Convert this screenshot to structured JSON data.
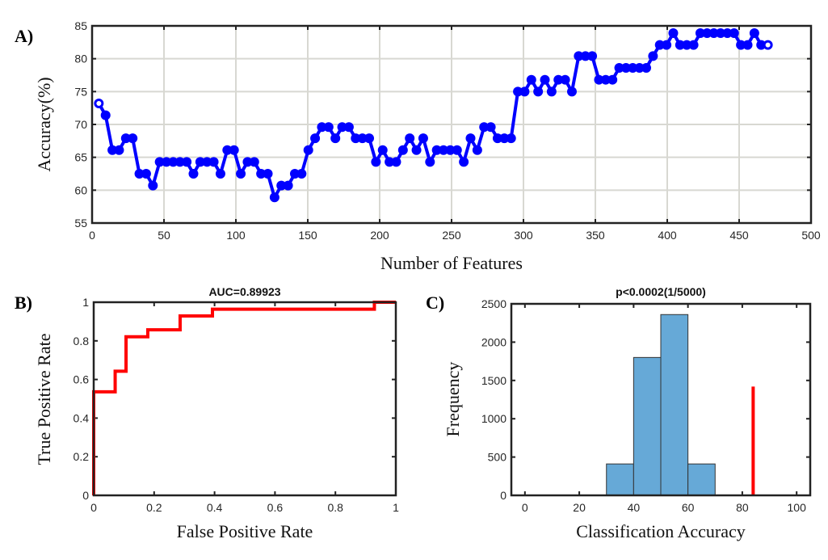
{
  "chart_data": [
    {
      "panel_label": "A)",
      "type": "line",
      "title": "",
      "xlabel": "Number of Features",
      "ylabel": "Accuracy(%)",
      "xlim": [
        0,
        500
      ],
      "ylim": [
        55,
        85
      ],
      "xticks": [
        0,
        50,
        100,
        150,
        200,
        250,
        300,
        350,
        400,
        450,
        500
      ],
      "yticks": [
        55,
        60,
        65,
        70,
        75,
        80,
        85
      ],
      "grid": true,
      "color": "#0000ff",
      "x_step": 4.7,
      "y": [
        73.2,
        71.4,
        66.1,
        66.1,
        67.9,
        67.9,
        62.5,
        62.5,
        60.7,
        64.3,
        64.3,
        64.3,
        64.3,
        64.3,
        62.5,
        64.3,
        64.3,
        64.3,
        62.5,
        66.1,
        66.1,
        62.5,
        64.3,
        64.3,
        62.5,
        62.5,
        58.9,
        60.7,
        60.7,
        62.5,
        62.5,
        66.1,
        67.9,
        69.6,
        69.6,
        67.9,
        69.6,
        69.6,
        67.9,
        67.9,
        67.9,
        64.3,
        66.1,
        64.3,
        64.3,
        66.1,
        67.9,
        66.1,
        67.9,
        64.3,
        66.1,
        66.1,
        66.1,
        66.1,
        64.3,
        67.9,
        66.1,
        69.6,
        69.6,
        67.9,
        67.9,
        67.9,
        75,
        75,
        76.8,
        75,
        76.8,
        75,
        76.8,
        76.8,
        75,
        80.4,
        80.4,
        80.4,
        76.8,
        76.8,
        76.8,
        78.6,
        78.6,
        78.6,
        78.6,
        78.6,
        80.4,
        82.1,
        82.1,
        83.9,
        82.1,
        82.1,
        82.1,
        83.9,
        83.9,
        83.9,
        83.9,
        83.9,
        83.9,
        82.1,
        82.1,
        83.9,
        82.1,
        82.1
      ]
    },
    {
      "panel_label": "B)",
      "type": "line",
      "title": "AUC=0.89923",
      "xlabel": "False Positive Rate",
      "ylabel": "True Positive Rate",
      "xlim": [
        0,
        1
      ],
      "ylim": [
        0,
        1
      ],
      "xticks": [
        0,
        0.2,
        0.4,
        0.6,
        0.8,
        1
      ],
      "yticks": [
        0,
        0.2,
        0.4,
        0.6,
        0.8,
        1
      ],
      "grid": false,
      "color": "#ff0000",
      "x": [
        0,
        0,
        0.071,
        0.071,
        0.107,
        0.107,
        0.179,
        0.179,
        0.286,
        0.286,
        0.393,
        0.393,
        0.929,
        0.929,
        1
      ],
      "y": [
        0,
        0.536,
        0.536,
        0.643,
        0.643,
        0.821,
        0.821,
        0.857,
        0.857,
        0.929,
        0.929,
        0.964,
        0.964,
        1,
        1
      ]
    },
    {
      "panel_label": "C)",
      "type": "bar",
      "title": "p<0.0002(1/5000)",
      "xlabel": "Classification Accuracy",
      "ylabel": "Frequency",
      "xlim": [
        -5,
        105
      ],
      "ylim": [
        0,
        2500
      ],
      "xticks": [
        0,
        20,
        40,
        60,
        80,
        100
      ],
      "yticks": [
        0,
        500,
        1000,
        1500,
        2000,
        2500
      ],
      "grid": false,
      "bar_color": "#66a9d7",
      "bins": [
        [
          30,
          40
        ],
        [
          40,
          50
        ],
        [
          50,
          60
        ],
        [
          60,
          70
        ]
      ],
      "values": [
        410,
        1800,
        2360,
        410
      ],
      "marker_line": {
        "x": 84,
        "y": 1420,
        "color": "#ff0000"
      }
    }
  ]
}
